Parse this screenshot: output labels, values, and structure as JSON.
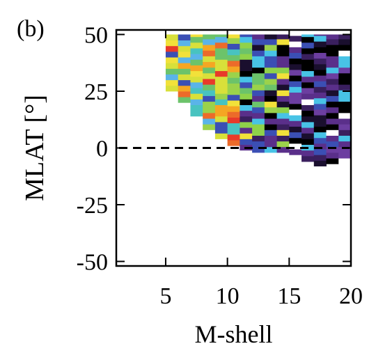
{
  "chart_data": {
    "type": "heatmap",
    "panel_label": "(b)",
    "xlabel": "M-shell",
    "ylabel": "MLAT [°]",
    "xlim": [
      1,
      20
    ],
    "ylim": [
      -52,
      52
    ],
    "xticks": [
      5,
      10,
      15,
      20
    ],
    "yticks": [
      50,
      25,
      0,
      -25,
      -50
    ],
    "reference_line": {
      "y": 0,
      "style": "dashed",
      "color": "#000000"
    },
    "grid": false,
    "color_scale": "rainbow (blue-green-yellow-red, with dark purple and black)",
    "coverage": [
      {
        "x": [
          5,
          6
        ],
        "y_min": 25,
        "y_max": 50
      },
      {
        "x": [
          6,
          7
        ],
        "y_min": 20,
        "y_max": 50
      },
      {
        "x": [
          7,
          8
        ],
        "y_min": 14,
        "y_max": 50
      },
      {
        "x": [
          8,
          9
        ],
        "y_min": 8,
        "y_max": 50
      },
      {
        "x": [
          9,
          10
        ],
        "y_min": 4,
        "y_max": 50
      },
      {
        "x": [
          10,
          11
        ],
        "y_min": 1,
        "y_max": 50
      },
      {
        "x": [
          11,
          12
        ],
        "y_min": -1,
        "y_max": 50
      },
      {
        "x": [
          12,
          13
        ],
        "y_min": -2,
        "y_max": 50
      },
      {
        "x": [
          13,
          14
        ],
        "y_min": -2,
        "y_max": 50
      },
      {
        "x": [
          14,
          15
        ],
        "y_min": -2,
        "y_max": 50
      },
      {
        "x": [
          15,
          16
        ],
        "y_min": -3,
        "y_max": 50
      },
      {
        "x": [
          16,
          17
        ],
        "y_min": -6,
        "y_max": 50
      },
      {
        "x": [
          17,
          18
        ],
        "y_min": -8,
        "y_max": 50
      },
      {
        "x": [
          18,
          19
        ],
        "y_min": -7,
        "y_max": 50
      },
      {
        "x": [
          19,
          20
        ],
        "y_min": -7,
        "y_max": 50
      }
    ],
    "palettes": {
      "low_shell": [
        "#3b4fb4",
        "#5ab4e8",
        "#6cc36a",
        "#9bd24b",
        "#d8e03a",
        "#f2e13a",
        "#f5a623",
        "#ec6b2a",
        "#e83a2a",
        "#48c3c0"
      ],
      "mid_shell": [
        "#3b4fb4",
        "#48c3e6",
        "#6cc36a",
        "#9bd24b",
        "#5a2f8a",
        "#3a1f5e",
        "#1a0f2e",
        "#000000",
        "#8fd24a",
        "#f2e13a"
      ],
      "high_shell": [
        "#1a0f2e",
        "#3a1f5e",
        "#5a2f8a",
        "#000000",
        "#3b4fb4",
        "#48c3e6",
        "#ffffff",
        "#6c3ea0",
        "#000000",
        "#5a2f8a"
      ]
    }
  }
}
